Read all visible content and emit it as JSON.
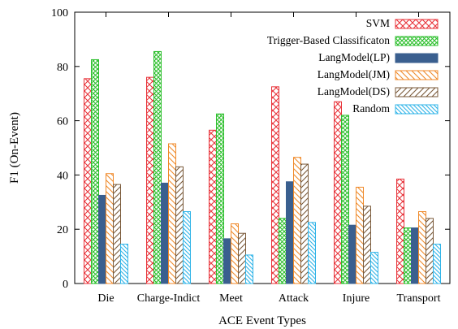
{
  "chart_data": {
    "type": "bar",
    "title": "",
    "xlabel": "ACE Event Types",
    "ylabel": "F1 (On-Event)",
    "ylim": [
      0,
      100
    ],
    "yticks": [
      0,
      20,
      40,
      60,
      80,
      100
    ],
    "grid": false,
    "legend_position": "top-right",
    "categories": [
      "Die",
      "Charge-Indict",
      "Meet",
      "Attack",
      "Injure",
      "Transport"
    ],
    "series": [
      {
        "name": "SVM",
        "color": "#e8333a",
        "pattern": "crosshatch",
        "values": [
          75.5,
          76,
          56.5,
          72.5,
          67,
          38.5
        ]
      },
      {
        "name": "Trigger-Based Classificaton",
        "color": "#2cbf2c",
        "pattern": "dense-crosshatch",
        "values": [
          82.5,
          85.5,
          62.5,
          24,
          62,
          20.5
        ]
      },
      {
        "name": "LangModel(LP)",
        "color": "#3a5f8f",
        "pattern": "solid",
        "values": [
          32.5,
          37,
          16.5,
          37.5,
          21.5,
          20.5
        ]
      },
      {
        "name": "LangModel(JM)",
        "color": "#f08a2a",
        "pattern": "hatch-backslash",
        "values": [
          40.5,
          51.5,
          22,
          46.5,
          35.5,
          26.5
        ]
      },
      {
        "name": "LangModel(DS)",
        "color": "#7a5a3a",
        "pattern": "hatch-slash",
        "values": [
          36.5,
          43,
          18.5,
          44,
          28.5,
          24
        ]
      },
      {
        "name": "Random",
        "color": "#30b4e8",
        "pattern": "hatch-backslash-fine",
        "values": [
          14.5,
          26.5,
          10.5,
          22.5,
          11.5,
          14.5
        ]
      }
    ]
  }
}
